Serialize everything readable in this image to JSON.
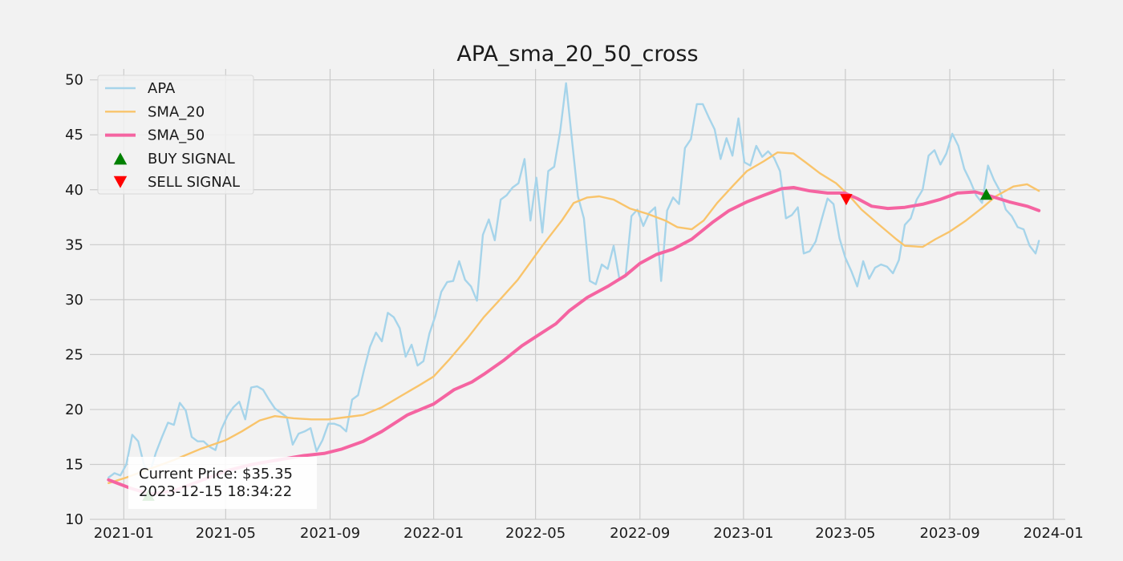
{
  "chart_data": {
    "type": "line",
    "title": "APA_sma_20_50_cross",
    "xlabel": "",
    "ylabel": "",
    "x_ticks": [
      "2021-01",
      "2021-05",
      "2021-09",
      "2022-01",
      "2022-05",
      "2022-09",
      "2023-01",
      "2023-05",
      "2023-09",
      "2024-01"
    ],
    "y_ticks": [
      10,
      15,
      20,
      25,
      30,
      35,
      40,
      45,
      50
    ],
    "ylim": [
      10,
      51
    ],
    "xlim": [
      "2020-11-22",
      "2024-01-15"
    ],
    "grid": true,
    "legend_position": "upper-left",
    "series": [
      {
        "name": "APA",
        "color": "#a6d4ea",
        "points": [
          [
            "2020-12-14",
            13.8
          ],
          [
            "2020-12-21",
            14.2
          ],
          [
            "2020-12-28",
            14.0
          ],
          [
            "2021-01-04",
            15.0
          ],
          [
            "2021-01-11",
            17.7
          ],
          [
            "2021-01-18",
            17.1
          ],
          [
            "2021-01-25",
            14.9
          ],
          [
            "2021-02-01",
            14.3
          ],
          [
            "2021-02-08",
            16.1
          ],
          [
            "2021-02-15",
            17.5
          ],
          [
            "2021-02-22",
            18.8
          ],
          [
            "2021-03-01",
            18.6
          ],
          [
            "2021-03-08",
            20.6
          ],
          [
            "2021-03-15",
            19.9
          ],
          [
            "2021-03-22",
            17.5
          ],
          [
            "2021-03-29",
            17.1
          ],
          [
            "2021-04-05",
            17.1
          ],
          [
            "2021-04-12",
            16.6
          ],
          [
            "2021-04-19",
            16.3
          ],
          [
            "2021-04-26",
            18.2
          ],
          [
            "2021-05-03",
            19.4
          ],
          [
            "2021-05-10",
            20.2
          ],
          [
            "2021-05-17",
            20.7
          ],
          [
            "2021-05-24",
            19.1
          ],
          [
            "2021-05-31",
            22.0
          ],
          [
            "2021-06-07",
            22.1
          ],
          [
            "2021-06-14",
            21.8
          ],
          [
            "2021-06-21",
            20.9
          ],
          [
            "2021-06-28",
            20.1
          ],
          [
            "2021-07-05",
            19.7
          ],
          [
            "2021-07-12",
            19.3
          ],
          [
            "2021-07-19",
            16.8
          ],
          [
            "2021-07-26",
            17.8
          ],
          [
            "2021-08-02",
            18.0
          ],
          [
            "2021-08-09",
            18.3
          ],
          [
            "2021-08-16",
            16.2
          ],
          [
            "2021-08-23",
            17.2
          ],
          [
            "2021-08-30",
            18.7
          ],
          [
            "2021-09-06",
            18.7
          ],
          [
            "2021-09-13",
            18.5
          ],
          [
            "2021-09-20",
            18.0
          ],
          [
            "2021-09-27",
            20.9
          ],
          [
            "2021-10-04",
            21.3
          ],
          [
            "2021-10-11",
            23.6
          ],
          [
            "2021-10-18",
            25.7
          ],
          [
            "2021-10-25",
            27.0
          ],
          [
            "2021-11-01",
            26.2
          ],
          [
            "2021-11-08",
            28.8
          ],
          [
            "2021-11-15",
            28.4
          ],
          [
            "2021-11-22",
            27.4
          ],
          [
            "2021-11-29",
            24.8
          ],
          [
            "2021-12-06",
            25.9
          ],
          [
            "2021-12-13",
            24.0
          ],
          [
            "2021-12-20",
            24.4
          ],
          [
            "2021-12-27",
            26.9
          ],
          [
            "2022-01-03",
            28.5
          ],
          [
            "2022-01-10",
            30.7
          ],
          [
            "2022-01-17",
            31.6
          ],
          [
            "2022-01-24",
            31.7
          ],
          [
            "2022-01-31",
            33.5
          ],
          [
            "2022-02-07",
            31.8
          ],
          [
            "2022-02-14",
            31.2
          ],
          [
            "2022-02-21",
            29.9
          ],
          [
            "2022-02-28",
            35.9
          ],
          [
            "2022-03-07",
            37.3
          ],
          [
            "2022-03-14",
            35.4
          ],
          [
            "2022-03-21",
            39.1
          ],
          [
            "2022-03-28",
            39.5
          ],
          [
            "2022-04-04",
            40.2
          ],
          [
            "2022-04-11",
            40.6
          ],
          [
            "2022-04-18",
            42.8
          ],
          [
            "2022-04-25",
            37.2
          ],
          [
            "2022-05-02",
            41.1
          ],
          [
            "2022-05-09",
            36.1
          ],
          [
            "2022-05-16",
            41.7
          ],
          [
            "2022-05-23",
            42.1
          ],
          [
            "2022-05-30",
            45.3
          ],
          [
            "2022-06-06",
            49.7
          ],
          [
            "2022-06-13",
            44.5
          ],
          [
            "2022-06-20",
            39.4
          ],
          [
            "2022-06-27",
            37.4
          ],
          [
            "2022-07-04",
            31.7
          ],
          [
            "2022-07-11",
            31.4
          ],
          [
            "2022-07-18",
            33.2
          ],
          [
            "2022-07-25",
            32.8
          ],
          [
            "2022-08-01",
            34.9
          ],
          [
            "2022-08-08",
            31.8
          ],
          [
            "2022-08-15",
            32.1
          ],
          [
            "2022-08-22",
            37.6
          ],
          [
            "2022-08-29",
            38.2
          ],
          [
            "2022-09-05",
            36.7
          ],
          [
            "2022-09-12",
            37.9
          ],
          [
            "2022-09-19",
            38.4
          ],
          [
            "2022-09-26",
            31.7
          ],
          [
            "2022-10-03",
            38.1
          ],
          [
            "2022-10-10",
            39.3
          ],
          [
            "2022-10-17",
            38.7
          ],
          [
            "2022-10-24",
            43.8
          ],
          [
            "2022-10-31",
            44.6
          ],
          [
            "2022-11-07",
            47.8
          ],
          [
            "2022-11-14",
            47.8
          ],
          [
            "2022-11-21",
            46.6
          ],
          [
            "2022-11-28",
            45.5
          ],
          [
            "2022-12-05",
            42.8
          ],
          [
            "2022-12-12",
            44.7
          ],
          [
            "2022-12-19",
            43.1
          ],
          [
            "2022-12-26",
            46.5
          ],
          [
            "2023-01-02",
            42.5
          ],
          [
            "2023-01-09",
            42.2
          ],
          [
            "2023-01-16",
            44.0
          ],
          [
            "2023-01-23",
            43.0
          ],
          [
            "2023-01-30",
            43.5
          ],
          [
            "2023-02-06",
            42.9
          ],
          [
            "2023-02-13",
            41.7
          ],
          [
            "2023-02-20",
            37.4
          ],
          [
            "2023-02-27",
            37.7
          ],
          [
            "2023-03-06",
            38.4
          ],
          [
            "2023-03-13",
            34.2
          ],
          [
            "2023-03-20",
            34.4
          ],
          [
            "2023-03-27",
            35.3
          ],
          [
            "2023-04-03",
            37.3
          ],
          [
            "2023-04-10",
            39.2
          ],
          [
            "2023-04-17",
            38.7
          ],
          [
            "2023-04-24",
            35.6
          ],
          [
            "2023-05-01",
            33.8
          ],
          [
            "2023-05-08",
            32.6
          ],
          [
            "2023-05-15",
            31.2
          ],
          [
            "2023-05-22",
            33.5
          ],
          [
            "2023-05-29",
            31.9
          ],
          [
            "2023-06-05",
            32.9
          ],
          [
            "2023-06-12",
            33.2
          ],
          [
            "2023-06-19",
            33.0
          ],
          [
            "2023-06-26",
            32.4
          ],
          [
            "2023-07-03",
            33.6
          ],
          [
            "2023-07-10",
            36.8
          ],
          [
            "2023-07-17",
            37.4
          ],
          [
            "2023-07-24",
            39.1
          ],
          [
            "2023-07-31",
            40.0
          ],
          [
            "2023-08-07",
            43.1
          ],
          [
            "2023-08-14",
            43.6
          ],
          [
            "2023-08-21",
            42.3
          ],
          [
            "2023-08-28",
            43.3
          ],
          [
            "2023-09-04",
            45.1
          ],
          [
            "2023-09-11",
            44.0
          ],
          [
            "2023-09-18",
            41.9
          ],
          [
            "2023-09-25",
            40.8
          ],
          [
            "2023-10-02",
            39.5
          ],
          [
            "2023-10-09",
            38.8
          ],
          [
            "2023-10-16",
            42.2
          ],
          [
            "2023-10-23",
            40.9
          ],
          [
            "2023-10-30",
            39.9
          ],
          [
            "2023-11-06",
            38.2
          ],
          [
            "2023-11-13",
            37.6
          ],
          [
            "2023-11-20",
            36.6
          ],
          [
            "2023-11-27",
            36.4
          ],
          [
            "2023-12-04",
            34.9
          ],
          [
            "2023-12-11",
            34.2
          ],
          [
            "2023-12-15",
            35.35
          ]
        ]
      },
      {
        "name": "SMA_20",
        "color": "#f9c46b",
        "points": [
          [
            "2020-12-14",
            13.3
          ],
          [
            "2021-01-04",
            13.8
          ],
          [
            "2021-02-01",
            14.6
          ],
          [
            "2021-03-01",
            15.4
          ],
          [
            "2021-04-01",
            16.4
          ],
          [
            "2021-05-01",
            17.2
          ],
          [
            "2021-05-20",
            18.0
          ],
          [
            "2021-06-10",
            19.0
          ],
          [
            "2021-06-28",
            19.4
          ],
          [
            "2021-07-20",
            19.2
          ],
          [
            "2021-08-10",
            19.1
          ],
          [
            "2021-08-30",
            19.1
          ],
          [
            "2021-09-20",
            19.3
          ],
          [
            "2021-10-10",
            19.5
          ],
          [
            "2021-11-01",
            20.2
          ],
          [
            "2021-11-25",
            21.3
          ],
          [
            "2021-12-15",
            22.2
          ],
          [
            "2022-01-01",
            23.0
          ],
          [
            "2022-01-20",
            24.6
          ],
          [
            "2022-02-10",
            26.5
          ],
          [
            "2022-03-01",
            28.4
          ],
          [
            "2022-03-20",
            30.0
          ],
          [
            "2022-04-10",
            31.8
          ],
          [
            "2022-04-25",
            33.4
          ],
          [
            "2022-05-10",
            35.0
          ],
          [
            "2022-06-01",
            37.2
          ],
          [
            "2022-06-15",
            38.8
          ],
          [
            "2022-07-01",
            39.3
          ],
          [
            "2022-07-15",
            39.4
          ],
          [
            "2022-08-01",
            39.1
          ],
          [
            "2022-08-20",
            38.3
          ],
          [
            "2022-09-10",
            37.8
          ],
          [
            "2022-10-01",
            37.2
          ],
          [
            "2022-10-15",
            36.6
          ],
          [
            "2022-11-01",
            36.4
          ],
          [
            "2022-11-15",
            37.2
          ],
          [
            "2022-12-01",
            38.8
          ],
          [
            "2022-12-20",
            40.4
          ],
          [
            "2023-01-05",
            41.7
          ],
          [
            "2023-01-25",
            42.6
          ],
          [
            "2023-02-10",
            43.4
          ],
          [
            "2023-03-01",
            43.3
          ],
          [
            "2023-03-15",
            42.5
          ],
          [
            "2023-04-01",
            41.5
          ],
          [
            "2023-04-20",
            40.6
          ],
          [
            "2023-05-05",
            39.5
          ],
          [
            "2023-05-20",
            38.2
          ],
          [
            "2023-06-10",
            36.8
          ],
          [
            "2023-06-30",
            35.5
          ],
          [
            "2023-07-10",
            34.9
          ],
          [
            "2023-07-31",
            34.8
          ],
          [
            "2023-08-15",
            35.5
          ],
          [
            "2023-09-01",
            36.2
          ],
          [
            "2023-09-20",
            37.2
          ],
          [
            "2023-10-10",
            38.4
          ],
          [
            "2023-10-25",
            39.4
          ],
          [
            "2023-11-15",
            40.3
          ],
          [
            "2023-12-01",
            40.5
          ],
          [
            "2023-12-15",
            39.9
          ]
        ]
      },
      {
        "name": "SMA_50",
        "color": "#f564a1",
        "points": [
          [
            "2020-12-14",
            13.6
          ],
          [
            "2021-01-10",
            12.8
          ],
          [
            "2021-02-01",
            12.3
          ],
          [
            "2021-03-01",
            12.6
          ],
          [
            "2021-04-01",
            13.5
          ],
          [
            "2021-05-01",
            14.4
          ],
          [
            "2021-06-01",
            15.0
          ],
          [
            "2021-07-01",
            15.4
          ],
          [
            "2021-08-01",
            15.8
          ],
          [
            "2021-08-25",
            16.0
          ],
          [
            "2021-09-15",
            16.4
          ],
          [
            "2021-10-10",
            17.1
          ],
          [
            "2021-11-01",
            18.0
          ],
          [
            "2021-12-01",
            19.5
          ],
          [
            "2022-01-01",
            20.5
          ],
          [
            "2022-01-25",
            21.8
          ],
          [
            "2022-02-15",
            22.5
          ],
          [
            "2022-03-01",
            23.2
          ],
          [
            "2022-03-25",
            24.5
          ],
          [
            "2022-04-15",
            25.8
          ],
          [
            "2022-05-05",
            26.8
          ],
          [
            "2022-05-25",
            27.8
          ],
          [
            "2022-06-10",
            29.0
          ],
          [
            "2022-07-01",
            30.2
          ],
          [
            "2022-07-25",
            31.2
          ],
          [
            "2022-08-15",
            32.2
          ],
          [
            "2022-09-01",
            33.3
          ],
          [
            "2022-09-20",
            34.1
          ],
          [
            "2022-10-10",
            34.6
          ],
          [
            "2022-11-01",
            35.5
          ],
          [
            "2022-11-25",
            37.0
          ],
          [
            "2022-12-15",
            38.1
          ],
          [
            "2023-01-05",
            38.9
          ],
          [
            "2023-01-25",
            39.5
          ],
          [
            "2023-02-15",
            40.1
          ],
          [
            "2023-03-01",
            40.2
          ],
          [
            "2023-03-20",
            39.9
          ],
          [
            "2023-04-10",
            39.7
          ],
          [
            "2023-04-30",
            39.7
          ],
          [
            "2023-05-15",
            39.2
          ],
          [
            "2023-06-01",
            38.5
          ],
          [
            "2023-06-20",
            38.3
          ],
          [
            "2023-07-10",
            38.4
          ],
          [
            "2023-08-01",
            38.7
          ],
          [
            "2023-08-20",
            39.1
          ],
          [
            "2023-09-10",
            39.7
          ],
          [
            "2023-10-01",
            39.8
          ],
          [
            "2023-10-20",
            39.4
          ],
          [
            "2023-11-10",
            38.9
          ],
          [
            "2023-12-01",
            38.5
          ],
          [
            "2023-12-15",
            38.1
          ]
        ]
      }
    ],
    "signals": [
      {
        "name": "BUY SIGNAL",
        "color": "#008000",
        "marker": "triangle-up",
        "points": [
          [
            "2021-01-30",
            12.2
          ],
          [
            "2023-10-14",
            39.6
          ]
        ]
      },
      {
        "name": "SELL SIGNAL",
        "color": "#ff0000",
        "marker": "triangle-down",
        "points": [
          [
            "2023-05-02",
            39.1
          ]
        ]
      }
    ],
    "annotation": {
      "line1": "Current Price: $35.35",
      "line2": "2023-12-15 18:34:22"
    }
  }
}
